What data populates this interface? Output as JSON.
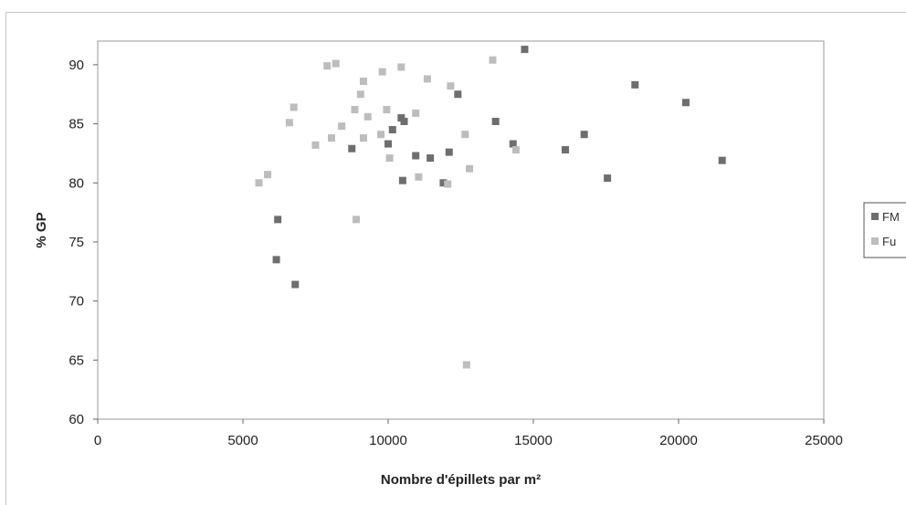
{
  "chart_data": {
    "type": "scatter",
    "title": "",
    "xlabel": "Nombre d'épillets par m²",
    "ylabel": "% GP",
    "xlim": [
      0,
      25000
    ],
    "ylim": [
      60,
      92
    ],
    "xticks": [
      0,
      5000,
      10000,
      15000,
      20000,
      25000
    ],
    "yticks": [
      60,
      65,
      70,
      75,
      80,
      85,
      90
    ],
    "grid": false,
    "legend_position": "right",
    "series": [
      {
        "name": "FM",
        "color": "#6e6e6e",
        "points": [
          {
            "x": 6200,
            "y": 76.9
          },
          {
            "x": 6150,
            "y": 73.5
          },
          {
            "x": 6800,
            "y": 71.4
          },
          {
            "x": 8750,
            "y": 82.9
          },
          {
            "x": 10000,
            "y": 83.3
          },
          {
            "x": 10150,
            "y": 84.5
          },
          {
            "x": 10450,
            "y": 85.5
          },
          {
            "x": 10550,
            "y": 85.2
          },
          {
            "x": 10500,
            "y": 80.2
          },
          {
            "x": 10950,
            "y": 82.3
          },
          {
            "x": 11450,
            "y": 82.1
          },
          {
            "x": 11900,
            "y": 80.0
          },
          {
            "x": 12100,
            "y": 82.6
          },
          {
            "x": 12400,
            "y": 87.5
          },
          {
            "x": 13700,
            "y": 85.2
          },
          {
            "x": 14300,
            "y": 83.3
          },
          {
            "x": 14700,
            "y": 91.3
          },
          {
            "x": 16100,
            "y": 82.8
          },
          {
            "x": 16750,
            "y": 84.1
          },
          {
            "x": 17550,
            "y": 80.4
          },
          {
            "x": 18500,
            "y": 88.3
          },
          {
            "x": 20250,
            "y": 86.8
          },
          {
            "x": 21500,
            "y": 81.9
          }
        ]
      },
      {
        "name": "Fu",
        "color": "#bdbdbd",
        "points": [
          {
            "x": 5550,
            "y": 80.0
          },
          {
            "x": 5850,
            "y": 80.7
          },
          {
            "x": 6600,
            "y": 85.1
          },
          {
            "x": 6750,
            "y": 86.4
          },
          {
            "x": 7500,
            "y": 83.2
          },
          {
            "x": 7900,
            "y": 89.9
          },
          {
            "x": 8050,
            "y": 83.8
          },
          {
            "x": 8200,
            "y": 90.1
          },
          {
            "x": 8400,
            "y": 84.8
          },
          {
            "x": 8850,
            "y": 86.2
          },
          {
            "x": 8900,
            "y": 76.9
          },
          {
            "x": 9050,
            "y": 87.5
          },
          {
            "x": 9150,
            "y": 88.6
          },
          {
            "x": 9150,
            "y": 83.8
          },
          {
            "x": 9300,
            "y": 85.6
          },
          {
            "x": 9750,
            "y": 84.1
          },
          {
            "x": 9800,
            "y": 89.4
          },
          {
            "x": 9950,
            "y": 86.2
          },
          {
            "x": 10050,
            "y": 82.1
          },
          {
            "x": 10450,
            "y": 89.8
          },
          {
            "x": 10950,
            "y": 85.9
          },
          {
            "x": 11050,
            "y": 80.5
          },
          {
            "x": 11350,
            "y": 88.8
          },
          {
            "x": 12050,
            "y": 79.9
          },
          {
            "x": 12150,
            "y": 88.2
          },
          {
            "x": 12650,
            "y": 84.1
          },
          {
            "x": 12700,
            "y": 64.6
          },
          {
            "x": 12800,
            "y": 81.2
          },
          {
            "x": 13600,
            "y": 90.4
          },
          {
            "x": 14400,
            "y": 82.8
          }
        ]
      }
    ]
  }
}
